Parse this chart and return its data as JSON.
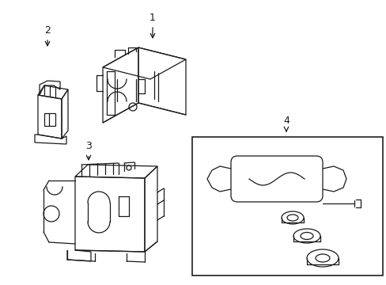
{
  "background_color": "#ffffff",
  "line_color": "#1a1a1a",
  "line_width": 0.9,
  "figure_width": 4.89,
  "figure_height": 3.6,
  "dpi": 100
}
